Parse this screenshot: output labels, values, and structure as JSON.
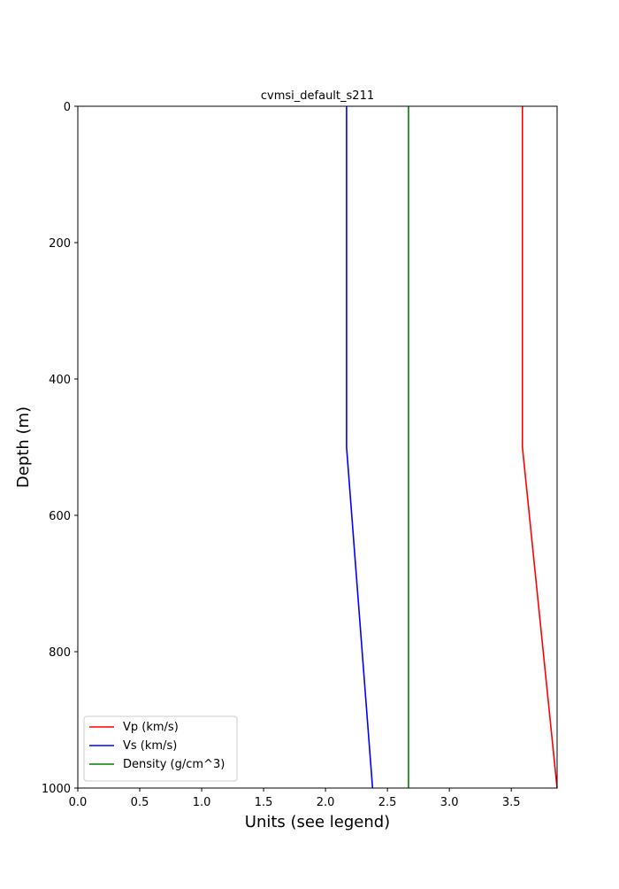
{
  "chart_data": {
    "type": "line",
    "title": "cvmsi_default_s211",
    "x_label": "Units (see legend)",
    "y_label": "Depth (m)",
    "depth": [
      0,
      500,
      1000
    ],
    "series": [
      {
        "name": "Vp (km/s)",
        "color": "#ff0000",
        "values": [
          3.59,
          3.59,
          3.87
        ]
      },
      {
        "name": "Vs (km/s)",
        "color": "#0000ff",
        "values": [
          2.17,
          2.17,
          2.38
        ]
      },
      {
        "name": "Density (g/cm^3)",
        "color": "#008000",
        "values": [
          2.67,
          2.67,
          2.67
        ]
      }
    ],
    "xlim": [
      0,
      3.87
    ],
    "ylim": [
      1000,
      0
    ],
    "xticks": [
      {
        "value": 0,
        "label": "0.0"
      },
      0.5,
      {
        "value": 1,
        "label": "1.0"
      },
      1.5,
      {
        "value": 2,
        "label": "2.0"
      },
      2.5,
      {
        "value": 3,
        "label": "3.0"
      },
      3.5
    ],
    "yticks": [
      0,
      200,
      400,
      600,
      800,
      1000
    ],
    "legend": "lower left"
  }
}
